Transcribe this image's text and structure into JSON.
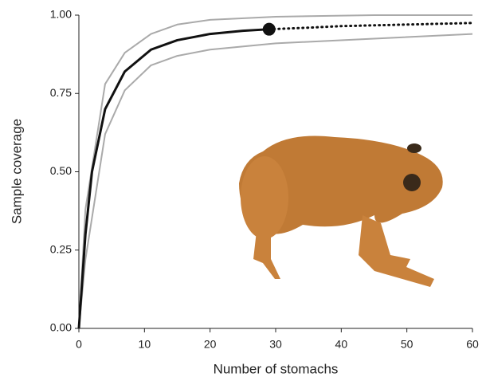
{
  "chart_data": {
    "type": "line",
    "xlabel": "Number of stomachs",
    "ylabel": "Sample coverage",
    "xlim": [
      0,
      60
    ],
    "ylim": [
      0,
      1
    ],
    "xticks": [
      0,
      10,
      20,
      30,
      40,
      50,
      60
    ],
    "yticks": [
      {
        "value": 0,
        "label": "0.00"
      },
      {
        "value": 0.25,
        "label": "0.25"
      },
      {
        "value": 0.5,
        "label": "0.50"
      },
      {
        "value": 0.75,
        "label": "0.75"
      },
      {
        "value": 1,
        "label": "1.00"
      }
    ],
    "series": [
      {
        "color": "#aaaaaa",
        "linestyle": "solid",
        "x": [
          0,
          1,
          4,
          7,
          11,
          15,
          20,
          30,
          45,
          60
        ],
        "values": [
          0,
          0.38,
          0.78,
          0.88,
          0.94,
          0.97,
          0.985,
          0.995,
          1.0,
          1.0
        ]
      },
      {
        "color": "#aaaaaa",
        "linestyle": "solid",
        "x": [
          0,
          1,
          4,
          7,
          11,
          15,
          20,
          30,
          45,
          60
        ],
        "values": [
          0,
          0.22,
          0.62,
          0.76,
          0.84,
          0.87,
          0.89,
          0.91,
          0.925,
          0.94
        ]
      },
      {
        "color": "#111111",
        "linestyle": "solid",
        "end_marker": true,
        "x": [
          0,
          1,
          2,
          4,
          7,
          11,
          15,
          20,
          25,
          29
        ],
        "values": [
          0,
          0.3,
          0.5,
          0.7,
          0.82,
          0.89,
          0.92,
          0.94,
          0.95,
          0.955
        ]
      },
      {
        "color": "#111111",
        "linestyle": "dotted",
        "x": [
          29,
          35,
          40,
          50,
          60
        ],
        "values": [
          0.955,
          0.96,
          0.965,
          0.97,
          0.975
        ]
      }
    ]
  }
}
